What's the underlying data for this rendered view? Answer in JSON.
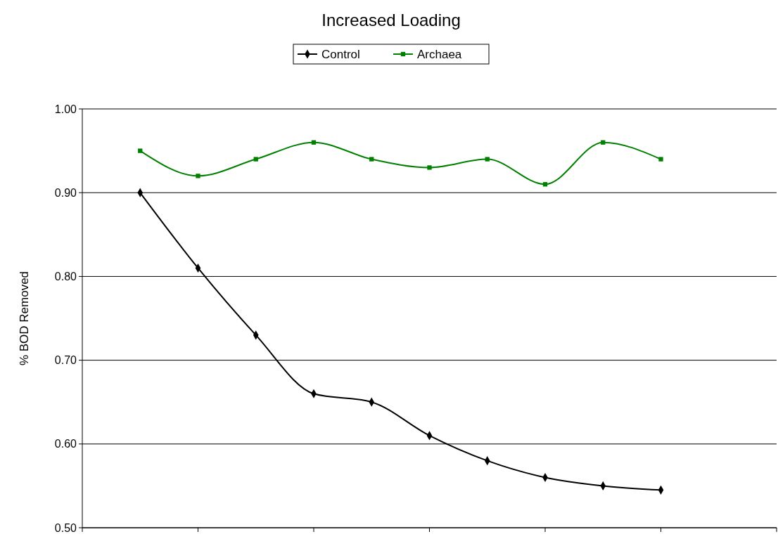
{
  "chart_data": {
    "type": "line",
    "title": "Increased Loading",
    "ylabel": "% BOD Removed",
    "categories": [
      null,
      null,
      null,
      null,
      null,
      null,
      null,
      null,
      null,
      null
    ],
    "series": [
      {
        "name": "Control",
        "color": "#000000",
        "marker": "diamond",
        "values": [
          0.9,
          0.81,
          0.73,
          0.66,
          0.65,
          0.61,
          0.58,
          0.56,
          0.55,
          0.545
        ]
      },
      {
        "name": "Archaea",
        "color": "#008000",
        "marker": "square",
        "values": [
          0.95,
          0.92,
          0.94,
          0.96,
          0.94,
          0.93,
          0.94,
          0.91,
          0.96,
          0.94
        ]
      }
    ],
    "ylim": [
      0.5,
      1.0
    ],
    "yticks": [
      {
        "value": 0.5,
        "label": "0.50"
      },
      {
        "value": 0.6,
        "label": "0.60"
      },
      {
        "value": 0.7,
        "label": "0.70"
      },
      {
        "value": 0.8,
        "label": "0.80"
      },
      {
        "value": 0.9,
        "label": "0.90"
      },
      {
        "value": 1.0,
        "label": "1.00"
      }
    ],
    "grid": "y",
    "legend": "top",
    "line_style": "solid"
  }
}
